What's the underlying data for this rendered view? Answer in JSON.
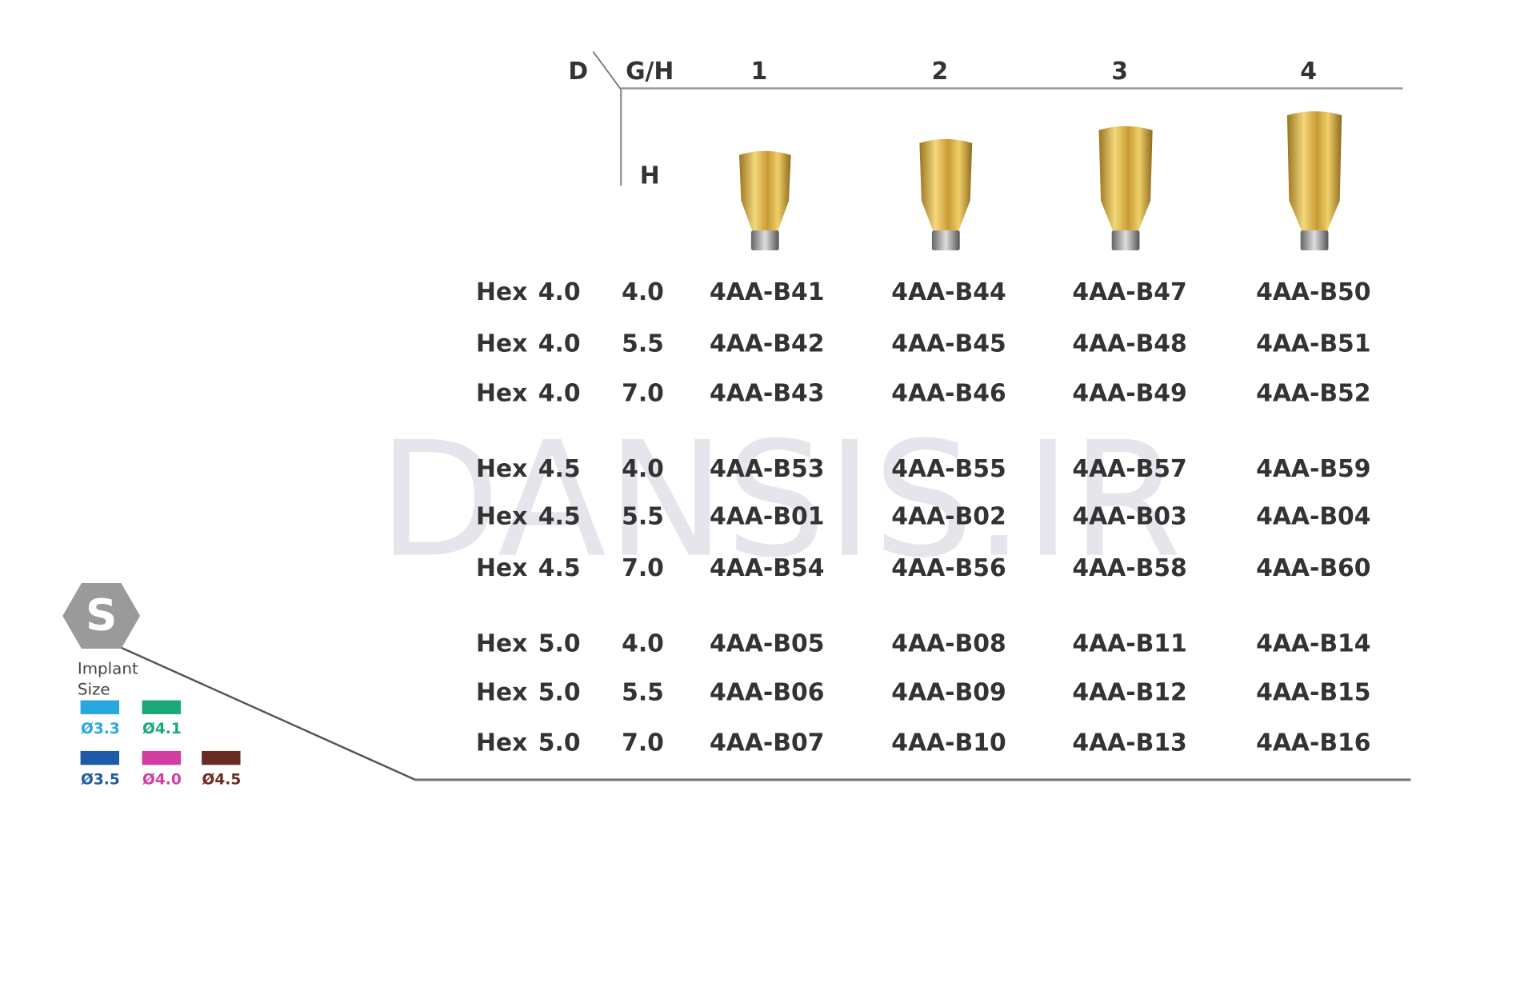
{
  "header": {
    "d": "D",
    "gh": "G/H",
    "h": "H",
    "columns": [
      "1",
      "2",
      "3",
      "4"
    ]
  },
  "rows": [
    {
      "type": "Hex",
      "d": "4.0",
      "h": "4.0",
      "codes": [
        "4AA-B41",
        "4AA-B44",
        "4AA-B47",
        "4AA-B50"
      ]
    },
    {
      "type": "Hex",
      "d": "4.0",
      "h": "5.5",
      "codes": [
        "4AA-B42",
        "4AA-B45",
        "4AA-B48",
        "4AA-B51"
      ]
    },
    {
      "type": "Hex",
      "d": "4.0",
      "h": "7.0",
      "codes": [
        "4AA-B43",
        "4AA-B46",
        "4AA-B49",
        "4AA-B52"
      ]
    },
    {
      "type": "Hex",
      "d": "4.5",
      "h": "4.0",
      "codes": [
        "4AA-B53",
        "4AA-B55",
        "4AA-B57",
        "4AA-B59"
      ]
    },
    {
      "type": "Hex",
      "d": "4.5",
      "h": "5.5",
      "codes": [
        "4AA-B01",
        "4AA-B02",
        "4AA-B03",
        "4AA-B04"
      ]
    },
    {
      "type": "Hex",
      "d": "4.5",
      "h": "7.0",
      "codes": [
        "4AA-B54",
        "4AA-B56",
        "4AA-B58",
        "4AA-B60"
      ]
    },
    {
      "type": "Hex",
      "d": "5.0",
      "h": "4.0",
      "codes": [
        "4AA-B05",
        "4AA-B08",
        "4AA-B11",
        "4AA-B14"
      ]
    },
    {
      "type": "Hex",
      "d": "5.0",
      "h": "5.5",
      "codes": [
        "4AA-B06",
        "4AA-B09",
        "4AA-B12",
        "4AA-B15"
      ]
    },
    {
      "type": "Hex",
      "d": "5.0",
      "h": "7.0",
      "codes": [
        "4AA-B07",
        "4AA-B10",
        "4AA-B13",
        "4AA-B16"
      ]
    }
  ],
  "watermark": "DANSIS.IR",
  "legend": {
    "badge": "S",
    "title_lines": [
      "Implant",
      "Size"
    ],
    "sizes": [
      {
        "label": "Ø3.3",
        "color": "#29a8e0"
      },
      {
        "label": "Ø4.1",
        "color": "#1aa878"
      },
      {
        "label": "Ø3.5",
        "color": "#1d5aa8"
      },
      {
        "label": "Ø4.0",
        "color": "#d23d9f"
      },
      {
        "label": "Ø4.5",
        "color": "#6b2a22"
      }
    ]
  }
}
